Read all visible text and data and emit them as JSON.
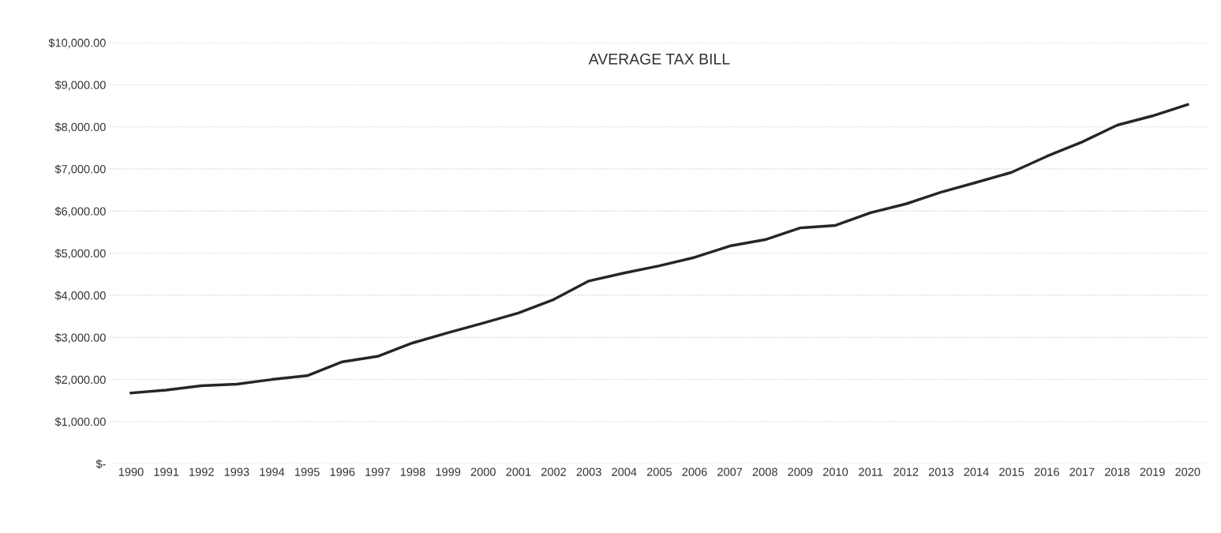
{
  "chart_data": {
    "type": "line",
    "title": "AVERAGE TAX BILL",
    "categories": [
      "1990",
      "1991",
      "1992",
      "1993",
      "1994",
      "1995",
      "1996",
      "1997",
      "1998",
      "1999",
      "2000",
      "2001",
      "2002",
      "2003",
      "2004",
      "2005",
      "2006",
      "2007",
      "2008",
      "2009",
      "2010",
      "2011",
      "2012",
      "2013",
      "2014",
      "2015",
      "2016",
      "2017",
      "2018",
      "2019",
      "2020"
    ],
    "series": [
      {
        "color": "#262626",
        "values": [
          1680,
          1750,
          1850,
          1890,
          2000,
          2090,
          2420,
          2550,
          2870,
          3110,
          3340,
          3580,
          3900,
          4340,
          4530,
          4700,
          4900,
          5170,
          5320,
          5600,
          5660,
          5960,
          6170,
          6450,
          6680,
          6920,
          7300,
          7640,
          8040,
          8260,
          8530
        ]
      }
    ],
    "ylim": [
      0,
      10000
    ],
    "yticks": [
      {
        "value": 0,
        "label": "$-"
      },
      {
        "value": 1000,
        "label": "$1,000.00"
      },
      {
        "value": 2000,
        "label": "$2,000.00"
      },
      {
        "value": 3000,
        "label": "$3,000.00"
      },
      {
        "value": 4000,
        "label": "$4,000.00"
      },
      {
        "value": 5000,
        "label": "$5,000.00"
      },
      {
        "value": 6000,
        "label": "$6,000.00"
      },
      {
        "value": 7000,
        "label": "$7,000.00"
      },
      {
        "value": 8000,
        "label": "$8,000.00"
      },
      {
        "value": 9000,
        "label": "$9,000.00"
      },
      {
        "value": 10000,
        "label": "$10,000.00"
      }
    ],
    "grid": "y",
    "marker": "none",
    "line_style": "solid"
  }
}
